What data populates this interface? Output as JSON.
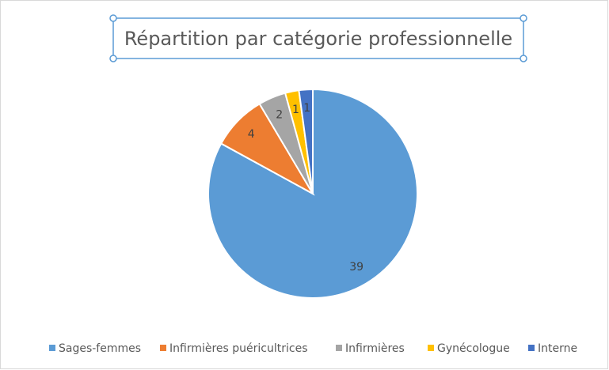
{
  "chart_data": {
    "type": "pie",
    "title": "Répartition par catégorie professionnelle",
    "categories": [
      "Sages-femmes",
      "Infirmières puéricultrices",
      "Infirmières",
      "Gynécologue",
      "Interne"
    ],
    "values": [
      39,
      4,
      2,
      1,
      1
    ],
    "colors": [
      "#5b9bd5",
      "#ed7d31",
      "#a5a5a5",
      "#ffc000",
      "#4472c4"
    ],
    "legend": "bottom"
  }
}
